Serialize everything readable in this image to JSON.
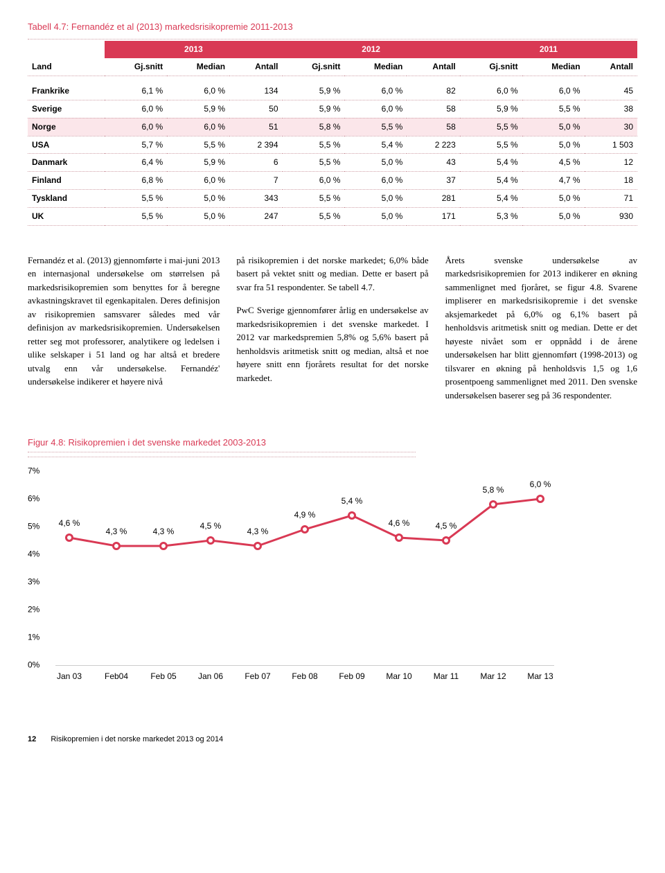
{
  "table_title_num": "Tabell 4.7:",
  "table_title_txt": "Fernandéz et al (2013) markedsrisikopremie 2011-2013",
  "table": {
    "years": [
      "2013",
      "2012",
      "2011"
    ],
    "col_labels": [
      "Land",
      "Gj.snitt",
      "Median",
      "Antall",
      "Gj.snitt",
      "Median",
      "Antall",
      "Gj.snitt",
      "Median",
      "Antall"
    ],
    "rows": [
      {
        "cells": [
          "Frankrike",
          "6,1 %",
          "6,0 %",
          "134",
          "5,9 %",
          "6,0 %",
          "82",
          "6,0 %",
          "6,0 %",
          "45"
        ],
        "hl": false
      },
      {
        "cells": [
          "Sverige",
          "6,0 %",
          "5,9 %",
          "50",
          "5,9 %",
          "6,0 %",
          "58",
          "5,9 %",
          "5,5 %",
          "38"
        ],
        "hl": false
      },
      {
        "cells": [
          "Norge",
          "6,0 %",
          "6,0 %",
          "51",
          "5,8 %",
          "5,5 %",
          "58",
          "5,5 %",
          "5,0 %",
          "30"
        ],
        "hl": true
      },
      {
        "cells": [
          "USA",
          "5,7 %",
          "5,5 %",
          "2 394",
          "5,5 %",
          "5,4 %",
          "2 223",
          "5,5 %",
          "5,0 %",
          "1 503"
        ],
        "hl": false
      },
      {
        "cells": [
          "Danmark",
          "6,4 %",
          "5,9 %",
          "6",
          "5,5 %",
          "5,0 %",
          "43",
          "5,4 %",
          "4,5 %",
          "12"
        ],
        "hl": false
      },
      {
        "cells": [
          "Finland",
          "6,8 %",
          "6,0 %",
          "7",
          "6,0 %",
          "6,0 %",
          "37",
          "5,4 %",
          "4,7 %",
          "18"
        ],
        "hl": false
      },
      {
        "cells": [
          "Tyskland",
          "5,5 %",
          "5,0 %",
          "343",
          "5,5 %",
          "5,0 %",
          "281",
          "5,4 %",
          "5,0 %",
          "71"
        ],
        "hl": false
      },
      {
        "cells": [
          "UK",
          "5,5 %",
          "5,0 %",
          "247",
          "5,5 %",
          "5,0 %",
          "171",
          "5,3 %",
          "5,0 %",
          "930"
        ],
        "hl": false
      }
    ]
  },
  "para1": "Fernandéz et al. (2013) gjennomførte i mai-juni 2013 en internasjonal undersøkelse om størrelsen på markedsrisikopremien som benyttes for å beregne avkastningskravet til egenkapitalen. Deres definisjon av risikopremien samsvarer således med vår definisjon av markedsrisikopremien. Undersøkelsen retter seg mot professorer, analytikere og ledelsen i ulike selskaper i 51 land og har altså et bredere utvalg enn vår undersøkelse. Fernandéz' undersøkelse indikerer et høyere nivå",
  "para2": "på risikopremien i det norske markedet; 6,0% både basert på vektet snitt og median. Dette er basert på svar fra 51 respondenter. Se tabell 4.7.\n\nPwC Sverige gjennomfører årlig en undersøkelse av markedsrisiko­premien i det svenske markedet. I 2012 var markedspremien 5,8% og 5,6% basert på henholdsvis aritmetisk snitt og median, altså et noe høyere snitt enn fjorårets resultat for det norske markedet.",
  "para3": "Årets svenske undersøkelse av markedsrisikopremien for 2013 indikerer en økning sammenlignet med fjoråret, se figur 4.8. Svarene impliserer en markedsrisikopremie i det svenske aksjemarkedet på 6,0% og 6,1% basert på henholdsvis aritmetisk snitt og median. Dette er det høyeste nivået som er oppnådd i de årene undersøkelsen har blitt gjennomført (1998-2013) og tilsvarer en økning på henholdsvis 1,5 og 1,6 prosentpoeng sammenlignet med 2011. Den svenske undersøkelsen baserer seg på 36 respondenter.",
  "figure_title_num": "Figur 4.8:",
  "figure_title_txt": "Risikopremien i det svenske markedet 2003-2013",
  "chart": {
    "type": "line",
    "ylim": [
      0,
      7
    ],
    "ytick_step": 1,
    "ytick_labels": [
      "0%",
      "1%",
      "2%",
      "3%",
      "4%",
      "5%",
      "6%",
      "7%"
    ],
    "line_color": "#d93954",
    "line_width": 3,
    "marker_border": "#d93954",
    "marker_fill": "#ffffff",
    "marker_size": 12,
    "grid_color": "#cccccc",
    "background_color": "#ffffff",
    "label_fontsize": 12,
    "points": [
      {
        "x": "Jan 03",
        "y": 4.6,
        "label": "4,6 %"
      },
      {
        "x": "Feb04",
        "y": 4.3,
        "label": "4,3 %"
      },
      {
        "x": "Feb 05",
        "y": 4.3,
        "label": "4,3 %"
      },
      {
        "x": "Jan 06",
        "y": 4.5,
        "label": "4,5 %"
      },
      {
        "x": "Feb 07",
        "y": 4.3,
        "label": "4,3 %"
      },
      {
        "x": "Feb 08",
        "y": 4.9,
        "label": "4,9 %"
      },
      {
        "x": "Feb 09",
        "y": 5.4,
        "label": "5,4 %"
      },
      {
        "x": "Mar 10",
        "y": 4.6,
        "label": "4,6 %"
      },
      {
        "x": "Mar 11",
        "y": 4.5,
        "label": "4,5 %"
      },
      {
        "x": "Mar 12",
        "y": 5.8,
        "label": "5,8 %"
      },
      {
        "x": "Mar 13",
        "y": 6.0,
        "label": "6,0 %"
      }
    ]
  },
  "footer_page": "12",
  "footer_text": "Risikopremien i det norske markedet 2013 og 2014"
}
